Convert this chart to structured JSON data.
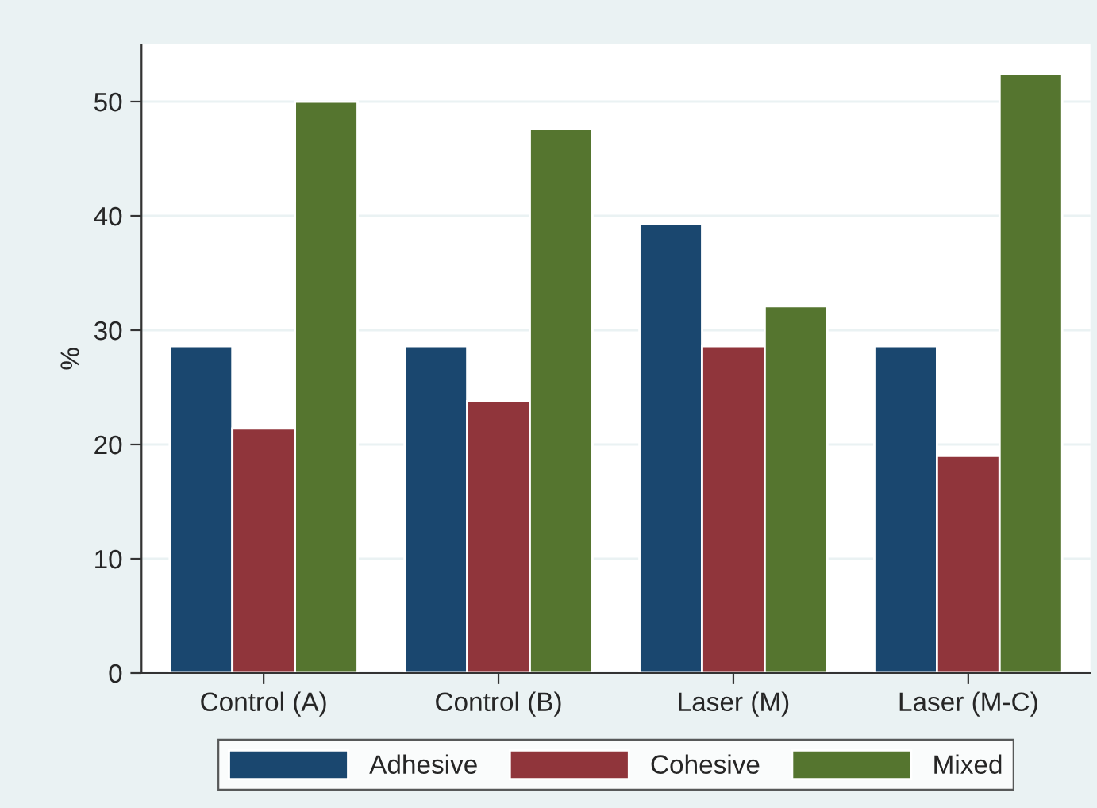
{
  "chart_data": {
    "type": "bar",
    "ylabel": "%",
    "categories": [
      "Control (A)",
      "Control (B)",
      "Laser (M)",
      "Laser (M-C)"
    ],
    "series": [
      {
        "name": "Adhesive",
        "color": "#1a476f",
        "values": [
          28.6,
          28.6,
          39.3,
          28.6
        ]
      },
      {
        "name": "Cohesive",
        "color": "#90353b",
        "values": [
          21.4,
          23.8,
          28.6,
          19.0
        ]
      },
      {
        "name": "Mixed",
        "color": "#55752f",
        "values": [
          50.0,
          47.6,
          32.1,
          52.4
        ]
      }
    ],
    "ylim": [
      0,
      55
    ],
    "yticks": [
      0,
      10,
      20,
      30,
      40,
      50
    ],
    "grid": "y",
    "legend": "bottom"
  }
}
